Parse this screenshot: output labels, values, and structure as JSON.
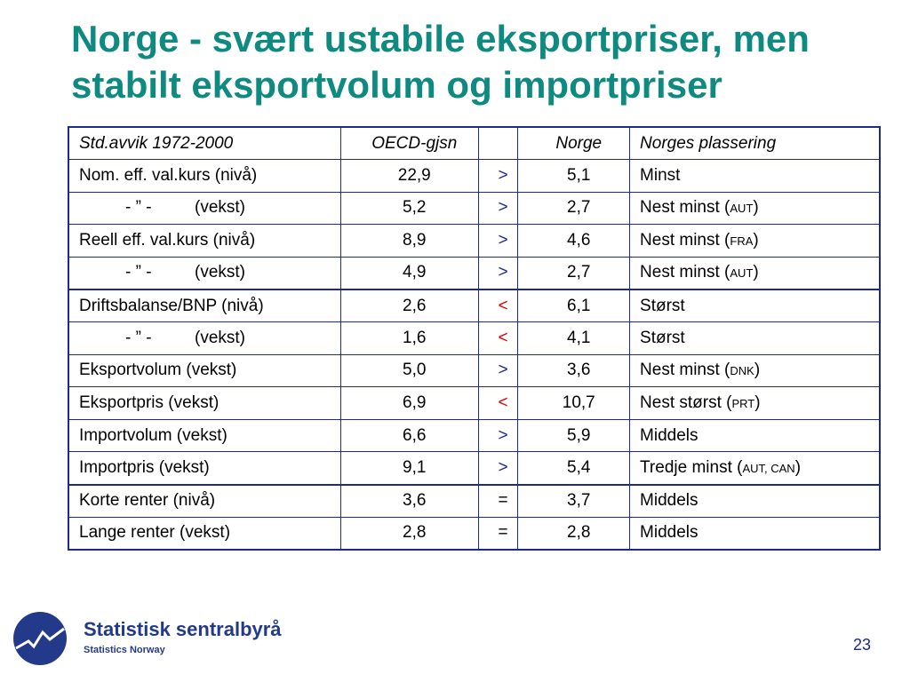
{
  "slide": {
    "title_line1": "Norge - svært ustabile eksportpriser, men",
    "title_line2": "stabilt eksportvolum og importpriser",
    "page_number": "23"
  },
  "colors": {
    "title": "#0e8a80",
    "border": "#1c2a8c",
    "greater": "#1c2a8c",
    "less": "#e00000",
    "equal": "#000000"
  },
  "table": {
    "header": {
      "label": "Std.avvik 1972-2000",
      "oecd": "OECD-gjsn",
      "cmp": "",
      "norge": "Norge",
      "place": "Norges plassering"
    },
    "rows": [
      {
        "label": "Nom. eff. val.kurs  (nivå)",
        "oecd": "22,9",
        "cmp": ">",
        "norge": "5,1",
        "place": "Minst",
        "place_code": ""
      },
      {
        "label_dash": "- ” -",
        "label_suffix": "(vekst)",
        "oecd": "5,2",
        "cmp": ">",
        "norge": "2,7",
        "place": "Nest minst (",
        "place_code": "aut",
        "place_end": ")"
      },
      {
        "label": "Reell eff. val.kurs  (nivå)",
        "oecd": "8,9",
        "cmp": ">",
        "norge": "4,6",
        "place": "Nest minst (",
        "place_code": "fra",
        "place_end": ")"
      },
      {
        "label_dash": "- ” -",
        "label_suffix": "(vekst)",
        "oecd": "4,9",
        "cmp": ">",
        "norge": "2,7",
        "place": "Nest minst (",
        "place_code": "aut",
        "place_end": ")"
      },
      {
        "label": "Driftsbalanse/BNP (nivå)",
        "oecd": "2,6",
        "cmp": "<",
        "norge": "6,1",
        "place": "Størst",
        "place_code": ""
      },
      {
        "label_dash": "- ” -",
        "label_suffix": "(vekst)",
        "oecd": "1,6",
        "cmp": "<",
        "norge": "4,1",
        "place": "Størst",
        "place_code": ""
      },
      {
        "label": "Eksportvolum (vekst)",
        "oecd": "5,0",
        "cmp": ">",
        "norge": "3,6",
        "place": "Nest minst (",
        "place_code": "dnk",
        "place_end": ")"
      },
      {
        "label": "Eksportpris (vekst)",
        "oecd": "6,9",
        "cmp": "<",
        "norge": "10,7",
        "place": "Nest størst (",
        "place_code": "prt",
        "place_end": ")"
      },
      {
        "label": "Importvolum (vekst)",
        "oecd": "6,6",
        "cmp": ">",
        "norge": "5,9",
        "place": "Middels",
        "place_code": ""
      },
      {
        "label": "Importpris (vekst)",
        "oecd": "9,1",
        "cmp": ">",
        "norge": "5,4",
        "place": "Tredje minst (",
        "place_code": "aut, can",
        "place_end": ")"
      },
      {
        "label": "Korte renter (nivå)",
        "oecd": "3,6",
        "cmp": "=",
        "norge": "3,7",
        "place": "Middels",
        "place_code": ""
      },
      {
        "label": "Lange renter (vekst)",
        "oecd": "2,8",
        "cmp": "=",
        "norge": "2,8",
        "place": "Middels",
        "place_code": ""
      }
    ]
  },
  "logo": {
    "icon": "ssb-logo-icon",
    "name": "Statistisk sentralbyrå",
    "subtitle": "Statistics Norway"
  }
}
